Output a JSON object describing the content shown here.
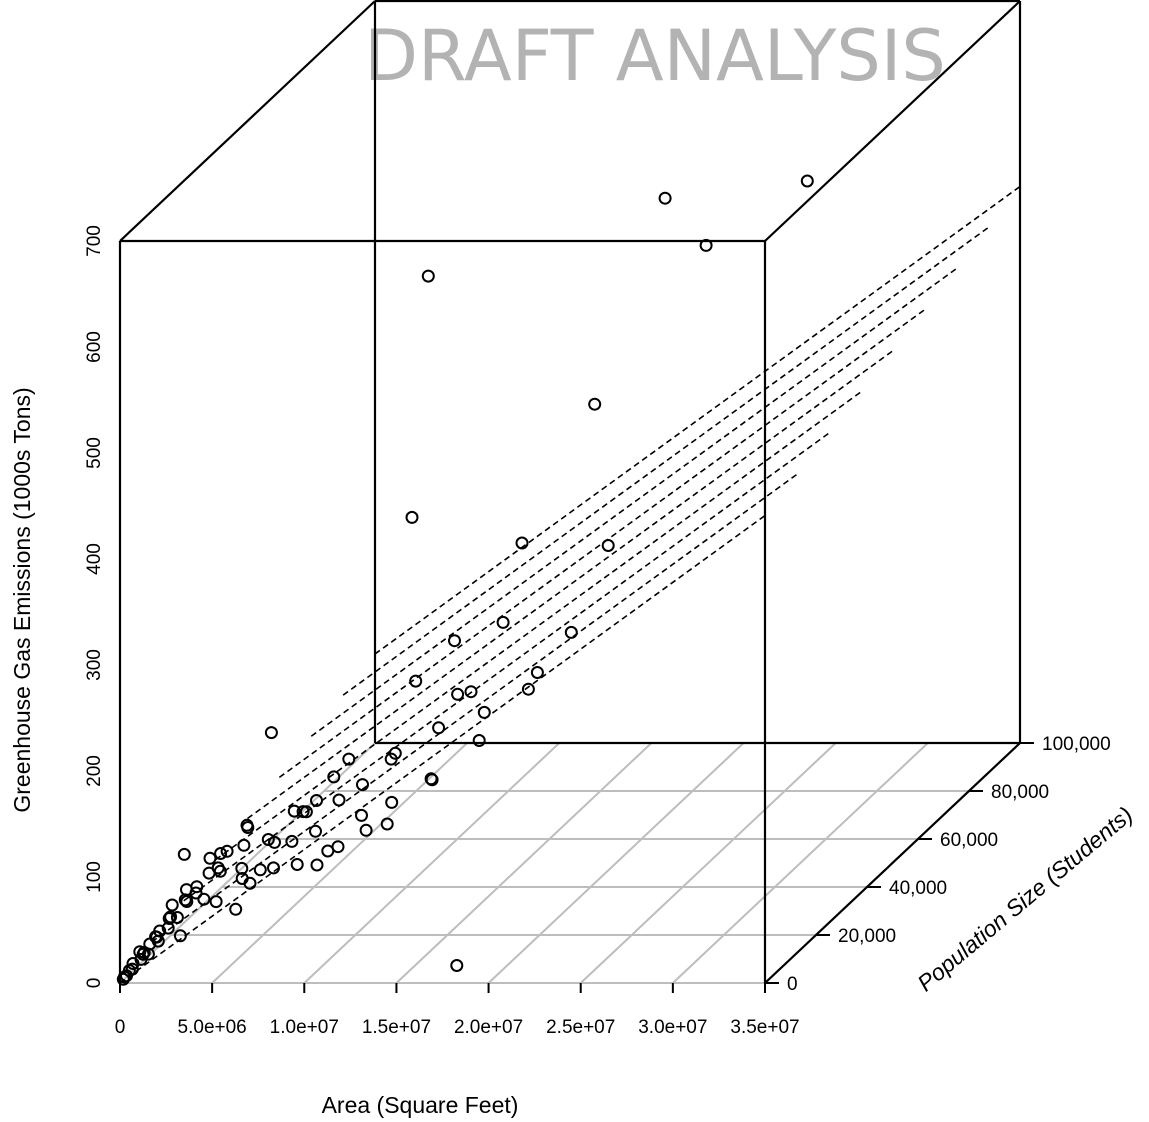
{
  "watermark": "DRAFT ANALYSIS",
  "chart_data": {
    "type": "scatter",
    "projection": "3d",
    "zlabel": "Greenhouse Gas Emissions (1000s Tons)",
    "xlabel": "Area (Square Feet)",
    "ylabel": "Population Size (Students)",
    "xlim": [
      0,
      35000000
    ],
    "ylim": [
      0,
      100000
    ],
    "zlim": [
      0,
      700
    ],
    "x_ticks": [
      "0",
      "5.0e+06",
      "1.0e+07",
      "1.5e+07",
      "2.0e+07",
      "2.5e+07",
      "3.0e+07",
      "3.5e+07"
    ],
    "y_ticks": [
      "0",
      "20,000",
      "40,000",
      "60,000",
      "80,000",
      "100,000"
    ],
    "z_ticks": [
      "0",
      "100",
      "200",
      "300",
      "400",
      "500",
      "600",
      "700"
    ],
    "x_tick_values": [
      0,
      5000000,
      10000000,
      15000000,
      20000000,
      25000000,
      30000000,
      35000000
    ],
    "y_tick_values": [
      0,
      20000,
      40000,
      60000,
      80000,
      100000
    ],
    "z_tick_values": [
      0,
      100,
      200,
      300,
      400,
      500,
      600,
      700
    ],
    "floor_grid": true,
    "marker": "open-circle",
    "regression_plane": {
      "style": "dashed",
      "z_at_origin": 0,
      "z_per_million_sqft": 12.6,
      "z_per_1000_students": 0.84
    },
    "points": [
      [
        26500000,
        78000,
        580
      ],
      [
        21000000,
        62000,
        600
      ],
      [
        10500000,
        45000,
        565
      ],
      [
        23500000,
        60000,
        560
      ],
      [
        20500000,
        38000,
        460
      ],
      [
        24000000,
        18000,
        372
      ],
      [
        11000000,
        35000,
        360
      ],
      [
        16000000,
        42000,
        320
      ],
      [
        22000000,
        18000,
        290
      ],
      [
        18500000,
        30000,
        225
      ],
      [
        20500000,
        12000,
        250
      ],
      [
        16000000,
        22000,
        225
      ],
      [
        17000000,
        18000,
        188
      ],
      [
        15000000,
        14000,
        160
      ],
      [
        18000000,
        2000,
        12
      ],
      [
        14000000,
        30000,
        255
      ],
      [
        15000000,
        24000,
        218
      ],
      [
        16500000,
        31000,
        270
      ],
      [
        17000000,
        20000,
        210
      ],
      [
        15500000,
        10000,
        170
      ],
      [
        12500000,
        16000,
        175
      ],
      [
        13500000,
        9000,
        150
      ],
      [
        14500000,
        0,
        150
      ],
      [
        13000000,
        22000,
        235
      ],
      [
        11500000,
        12000,
        160
      ],
      [
        10500000,
        10000,
        150
      ],
      [
        11000000,
        6000,
        115
      ],
      [
        9000000,
        12000,
        145
      ],
      [
        9500000,
        8000,
        125
      ],
      [
        10000000,
        5000,
        100
      ],
      [
        11000000,
        2000,
        120
      ],
      [
        8000000,
        14000,
        130
      ],
      [
        8500000,
        6000,
        120
      ],
      [
        7000000,
        10000,
        110
      ],
      [
        7500000,
        6000,
        95
      ],
      [
        6000000,
        16000,
        200
      ],
      [
        6500000,
        4000,
        85
      ],
      [
        5000000,
        14000,
        115
      ],
      [
        5500000,
        8000,
        90
      ],
      [
        6000000,
        2000,
        65
      ],
      [
        4500000,
        6000,
        95
      ],
      [
        4000000,
        4000,
        70
      ],
      [
        3500000,
        10000,
        95
      ],
      [
        3000000,
        2000,
        40
      ],
      [
        2800000,
        5000,
        110
      ],
      [
        2500000,
        8000,
        70
      ],
      [
        2200000,
        3000,
        45
      ],
      [
        2000000,
        6000,
        60
      ],
      [
        1800000,
        2000,
        35
      ],
      [
        1600000,
        4000,
        40
      ],
      [
        1400000,
        1000,
        25
      ],
      [
        1200000,
        3000,
        30
      ],
      [
        1000000,
        1000,
        20
      ],
      [
        800000,
        2000,
        25
      ],
      [
        600000,
        500,
        12
      ],
      [
        500000,
        1500,
        15
      ],
      [
        400000,
        800,
        10
      ],
      [
        300000,
        400,
        6
      ],
      [
        200000,
        300,
        5
      ],
      [
        150000,
        200,
        3
      ],
      [
        4200000,
        9000,
        85
      ],
      [
        5200000,
        11000,
        105
      ],
      [
        6800000,
        9000,
        115
      ],
      [
        7800000,
        12000,
        135
      ],
      [
        8800000,
        9500,
        140
      ],
      [
        9800000,
        13000,
        165
      ],
      [
        3200000,
        7000,
        75
      ],
      [
        3800000,
        12000,
        95
      ],
      [
        2600000,
        11000,
        60
      ],
      [
        4800000,
        3000,
        70
      ],
      [
        5800000,
        6000,
        85
      ],
      [
        7200000,
        3000,
        100
      ],
      [
        1100000,
        6000,
        30
      ],
      [
        1500000,
        9000,
        42
      ],
      [
        2100000,
        11000,
        52
      ],
      [
        2900000,
        14000,
        72
      ],
      [
        3600000,
        16000,
        88
      ],
      [
        4400000,
        18000,
        108
      ],
      [
        12000000,
        8000,
        140
      ],
      [
        13000000,
        14000,
        185
      ],
      [
        12800000,
        4000,
        135
      ],
      [
        14800000,
        18000,
        200
      ],
      [
        9200000,
        3000,
        105
      ],
      [
        10200000,
        16000,
        175
      ],
      [
        700000,
        4000,
        18
      ],
      [
        900000,
        3000,
        22
      ],
      [
        1300000,
        5000,
        32
      ],
      [
        1700000,
        7000,
        45
      ],
      [
        2300000,
        9000,
        58
      ],
      [
        2700000,
        3000,
        55
      ]
    ]
  }
}
